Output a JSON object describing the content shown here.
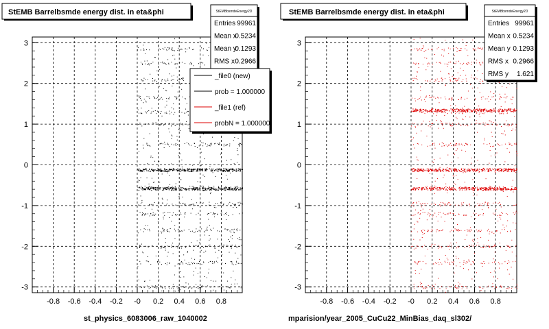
{
  "colors": {
    "series_new": "#000000",
    "series_ref": "#dd0000",
    "frame": "#000000",
    "grid": "#000000",
    "shadow": "#000000"
  },
  "chart_data": [
    {
      "type": "scatter",
      "title": "StEMB Barrelbsmde energy dist. in eta&phi",
      "xlabel": "st_physics_6083006_raw_1040002",
      "ylabel": "",
      "xlim": [
        -1.0,
        1.0
      ],
      "ylim": [
        -3.14,
        3.14
      ],
      "x_ticks": [
        "-0.8",
        "-0.6",
        "-0.4",
        "-0.2",
        "-0",
        "0.2",
        "0.4",
        "0.6",
        "0.8"
      ],
      "y_ticks": [
        "-3",
        "-2",
        "-1",
        "0",
        "1",
        "2",
        "3"
      ],
      "grid": true,
      "stats": {
        "name": "StEMBbsmdeEnergy2D",
        "rows": [
          {
            "label": "Entries",
            "value": "99961"
          },
          {
            "label": "Mean x",
            "value": "0.5234"
          },
          {
            "label": "Mean y",
            "value": "0.1293"
          },
          {
            "label": "RMS x",
            "value": "0.2966"
          }
        ]
      },
      "legend": {
        "placement": "top-right",
        "entries": [
          {
            "label": "_file0 (new)",
            "color": "#000000"
          },
          {
            "label": "prob = 1.000000",
            "color": "#000000"
          },
          {
            "label": "_file1 (ref)",
            "color": "#dd0000"
          },
          {
            "label": "probN = 1.000000",
            "color": "#dd0000"
          }
        ]
      },
      "series": [
        {
          "color": "#000000",
          "x_range": [
            0.0,
            1.0
          ],
          "bands_y": [
            -3.0,
            -2.4,
            -2.0,
            -1.6,
            -1.2,
            -0.95,
            -0.55,
            -0.12,
            0.5,
            1.0,
            1.3,
            1.65,
            2.1,
            2.5,
            2.85
          ],
          "dense_bands_y": [
            -0.58,
            -0.12
          ]
        }
      ]
    },
    {
      "type": "scatter",
      "title": "StEMB Barrelbsmde energy dist. in eta&phi",
      "xlabel": "mparision/year_2005_CuCu22_MinBias_daq_sl302/",
      "ylabel": "",
      "xlim": [
        -1.0,
        1.0
      ],
      "ylim": [
        -3.14,
        3.14
      ],
      "x_ticks": [
        "-0.8",
        "-0.6",
        "-0.4",
        "-0.2",
        "-0",
        "0.2",
        "0.4",
        "0.6",
        "0.8"
      ],
      "y_ticks": [
        "-3",
        "-2",
        "-1",
        "0",
        "1",
        "2",
        "3"
      ],
      "grid": true,
      "stats": {
        "name": "StEMBbsmdeEnergy2D",
        "rows": [
          {
            "label": "Entries",
            "value": "99961"
          },
          {
            "label": "Mean x",
            "value": "0.5234"
          },
          {
            "label": "Mean y",
            "value": "0.1293"
          },
          {
            "label": "RMS x",
            "value": "0.2966"
          },
          {
            "label": "RMS y",
            "value": "1.621"
          }
        ]
      },
      "series": [
        {
          "color": "#dd0000",
          "x_range": [
            0.0,
            1.0
          ],
          "bands_y": [
            -3.0,
            -2.4,
            -2.0,
            -1.6,
            -1.2,
            -0.95,
            -0.55,
            -0.12,
            0.5,
            1.0,
            1.3,
            1.65,
            2.1,
            2.5,
            2.85
          ],
          "dense_bands_y": [
            -0.58,
            -0.12,
            1.35
          ]
        }
      ]
    }
  ],
  "footer": {
    "left_text": ""
  }
}
